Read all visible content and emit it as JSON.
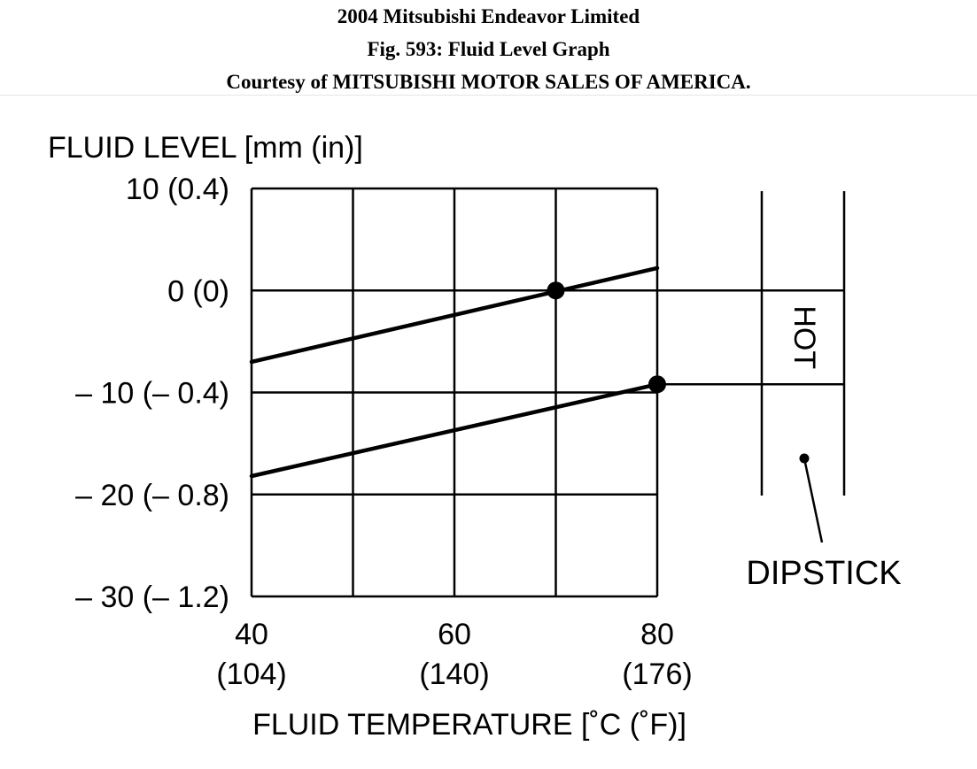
{
  "header": {
    "title": "2004 Mitsubishi Endeavor Limited",
    "figure": "Fig. 593: Fluid Level Graph",
    "courtesy": "Courtesy of MITSUBISHI MOTOR SALES OF AMERICA."
  },
  "chart_data": {
    "type": "line",
    "ylabel": "FLUID LEVEL [mm (in)]",
    "xlabel": "FLUID TEMPERATURE [˚C (˚F)]",
    "xlim": [
      40,
      80
    ],
    "ylim": [
      -30,
      10
    ],
    "x_ticks": [
      {
        "value": 40,
        "label": "40",
        "sublabel": "(104)"
      },
      {
        "value": 60,
        "label": "60",
        "sublabel": "(140)"
      },
      {
        "value": 80,
        "label": "80",
        "sublabel": "(176)"
      }
    ],
    "y_ticks": [
      {
        "value": 10,
        "label": "10 (0.4)"
      },
      {
        "value": 0,
        "label": "0 (0)"
      },
      {
        "value": -10,
        "label": "– 10 (– 0.4)"
      },
      {
        "value": -20,
        "label": "– 20 (– 0.8)"
      },
      {
        "value": -30,
        "label": "– 30 (– 1.2)"
      }
    ],
    "x_gridlines": [
      40,
      50,
      60,
      70,
      80
    ],
    "y_gridlines": [
      10,
      0,
      -10,
      -20,
      -30
    ],
    "series": [
      {
        "x": [
          40,
          80
        ],
        "y": [
          -7,
          2.2
        ],
        "marker": {
          "x": 70,
          "y": 0
        }
      },
      {
        "x": [
          40,
          80
        ],
        "y": [
          -18.2,
          -9.2
        ],
        "marker": {
          "x": 80,
          "y": -9.2
        }
      }
    ],
    "dipstick": {
      "label": "DIPSTICK",
      "band_label": "HOT",
      "band_top": 0,
      "band_bottom": -9.2
    }
  }
}
